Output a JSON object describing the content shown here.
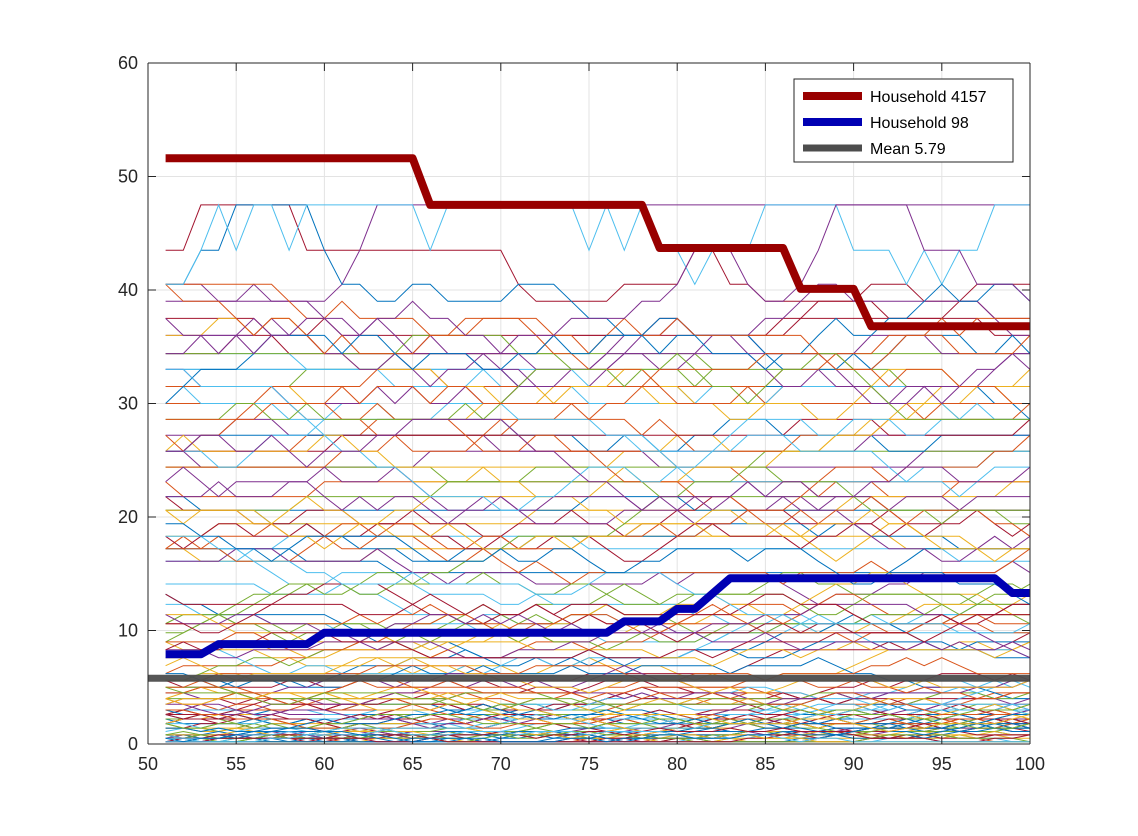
{
  "chart_data": {
    "type": "line",
    "title": "",
    "xlabel": "",
    "ylabel": "",
    "xlim": [
      50,
      100
    ],
    "ylim": [
      0,
      60
    ],
    "xticks": [
      50,
      55,
      60,
      65,
      70,
      75,
      80,
      85,
      90,
      95,
      100
    ],
    "yticks": [
      0,
      10,
      20,
      30,
      40,
      50,
      60
    ],
    "grid": true,
    "legend_position": "top-right",
    "palette": [
      "#0072BD",
      "#D95319",
      "#EDB120",
      "#7E2F8E",
      "#77AC30",
      "#4DBEEE",
      "#A2142F"
    ],
    "background_levels": [
      0.2,
      0.5,
      0.8,
      1.1,
      1.4,
      1.8,
      2.2,
      2.6,
      3.0,
      3.5,
      4.0,
      4.5,
      5.0,
      5.6,
      6.2,
      6.9,
      7.6,
      8.3,
      9.0,
      9.8,
      10.6,
      11.4,
      12.3,
      13.2,
      14.1,
      15.1,
      16.1,
      17.2,
      18.3,
      19.4,
      20.6,
      21.8,
      23.1,
      24.4,
      25.8,
      27.2,
      28.6,
      30.0,
      31.5,
      33.0,
      34.4,
      36.0,
      37.5,
      39.0,
      40.5,
      43.5,
      47.5
    ],
    "series": [
      {
        "name": "Household 4157",
        "color": "#990000",
        "x": [
          51,
          65,
          66,
          78,
          79,
          86,
          87,
          90,
          91,
          100
        ],
        "y": [
          51.6,
          51.6,
          47.5,
          47.5,
          43.7,
          43.7,
          40.1,
          40.1,
          36.8,
          36.8
        ]
      },
      {
        "name": "Household 98",
        "color": "#0000B3",
        "x": [
          51,
          53,
          54,
          59,
          60,
          76,
          77,
          79,
          80,
          81,
          83,
          98,
          99,
          100
        ],
        "y": [
          7.9,
          7.9,
          8.8,
          8.8,
          9.8,
          9.8,
          10.8,
          10.8,
          11.9,
          11.9,
          14.6,
          14.6,
          13.3,
          13.3
        ]
      },
      {
        "name": "Mean 5.79",
        "color": "#4D4D4D",
        "x": [
          50,
          100
        ],
        "y": [
          5.79,
          5.79
        ]
      }
    ]
  }
}
